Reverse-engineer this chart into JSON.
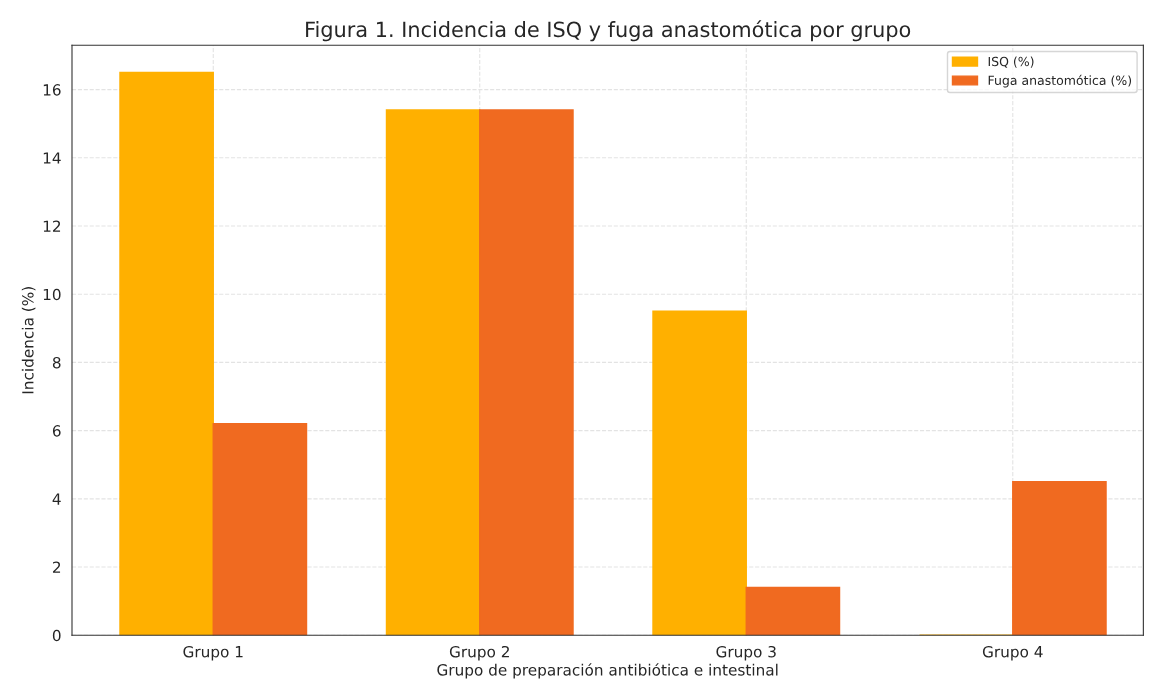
{
  "chart_data": {
    "type": "bar",
    "title": "Figura 1. Incidencia de ISQ y fuga anastomótica por grupo",
    "xlabel": "Grupo de preparación antibiótica e intestinal",
    "ylabel": "Incidencia (%)",
    "categories": [
      "Grupo 1",
      "Grupo 2",
      "Grupo 3",
      "Grupo 4"
    ],
    "series": [
      {
        "name": "ISQ (%)",
        "color": "#ffb000",
        "values": [
          16.5,
          15.4,
          9.5,
          0
        ]
      },
      {
        "name": "Fuga anastomótica (%)",
        "color": "#f06a20",
        "values": [
          6.2,
          15.4,
          1.4,
          4.5
        ]
      }
    ],
    "ylim": [
      0,
      17.3
    ],
    "yticks": [
      0,
      2,
      4,
      6,
      8,
      10,
      12,
      14,
      16
    ],
    "grid": true,
    "legend": "top right"
  }
}
